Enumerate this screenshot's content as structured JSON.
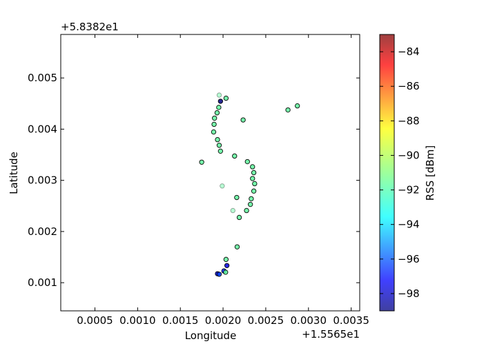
{
  "chart_data": {
    "type": "scatter",
    "title": "",
    "xlabel": "Longitude",
    "ylabel": "Latitude",
    "x_offset_label": "+1.5565e1",
    "y_offset_label": "+5.8382e1",
    "xlim": [
      0.0001,
      0.0036
    ],
    "ylim": [
      0.00045,
      0.00585
    ],
    "x_ticks": [
      0.0005,
      0.001,
      0.0015,
      0.002,
      0.0025,
      0.003,
      0.0035
    ],
    "x_tick_labels": [
      "0.0005",
      "0.0010",
      "0.0015",
      "0.0020",
      "0.0025",
      "0.0030",
      "0.0035"
    ],
    "y_ticks": [
      0.001,
      0.002,
      0.003,
      0.004,
      0.005
    ],
    "y_tick_labels": [
      "0.001",
      "0.002",
      "0.003",
      "0.004",
      "0.005"
    ],
    "colorbar": {
      "label": "RSS [dBm]",
      "range": [
        -99,
        -83
      ],
      "ticks": [
        -84,
        -86,
        -88,
        -90,
        -92,
        -94,
        -96,
        -98
      ],
      "tick_labels": [
        "−84",
        "−86",
        "−88",
        "−90",
        "−92",
        "−94",
        "−96",
        "−98"
      ],
      "colormap": "jet"
    },
    "grid": false,
    "points": [
      {
        "x": 0.001955,
        "y": 0.004665,
        "rss": -91.5,
        "faint": true
      },
      {
        "x": 0.002035,
        "y": 0.004605,
        "rss": -91.5,
        "faint": false
      },
      {
        "x": 0.00197,
        "y": 0.004545,
        "rss": -99.0,
        "faint": false
      },
      {
        "x": 0.00195,
        "y": 0.004425,
        "rss": -91.5,
        "faint": false
      },
      {
        "x": 0.00193,
        "y": 0.00432,
        "rss": -91.5,
        "faint": false
      },
      {
        "x": 0.0019,
        "y": 0.004215,
        "rss": -91.5,
        "faint": false
      },
      {
        "x": 0.001895,
        "y": 0.004095,
        "rss": -91.5,
        "faint": false
      },
      {
        "x": 0.00189,
        "y": 0.003945,
        "rss": -91.5,
        "faint": false
      },
      {
        "x": 0.001935,
        "y": 0.003795,
        "rss": -91.5,
        "faint": false
      },
      {
        "x": 0.001955,
        "y": 0.003685,
        "rss": -91.5,
        "faint": false
      },
      {
        "x": 0.00197,
        "y": 0.00357,
        "rss": -91.5,
        "faint": false
      },
      {
        "x": 0.002135,
        "y": 0.003475,
        "rss": -91.5,
        "faint": false
      },
      {
        "x": 0.002285,
        "y": 0.003365,
        "rss": -91.5,
        "faint": false
      },
      {
        "x": 0.002345,
        "y": 0.003265,
        "rss": -91.5,
        "faint": false
      },
      {
        "x": 0.00236,
        "y": 0.00315,
        "rss": -91.5,
        "faint": false
      },
      {
        "x": 0.002345,
        "y": 0.003035,
        "rss": -91.5,
        "faint": false
      },
      {
        "x": 0.00237,
        "y": 0.002935,
        "rss": -91.5,
        "faint": false
      },
      {
        "x": 0.00236,
        "y": 0.00279,
        "rss": -91.5,
        "faint": false
      },
      {
        "x": 0.00216,
        "y": 0.002665,
        "rss": -91.5,
        "faint": false
      },
      {
        "x": 0.00233,
        "y": 0.00264,
        "rss": -91.5,
        "faint": false
      },
      {
        "x": 0.00232,
        "y": 0.00253,
        "rss": -91.5,
        "faint": false
      },
      {
        "x": 0.002275,
        "y": 0.00241,
        "rss": -91.5,
        "faint": false
      },
      {
        "x": 0.002115,
        "y": 0.00241,
        "rss": -91.5,
        "faint": true
      },
      {
        "x": 0.00219,
        "y": 0.002275,
        "rss": -91.5,
        "faint": false
      },
      {
        "x": 0.00199,
        "y": 0.00289,
        "rss": -91.5,
        "faint": true
      },
      {
        "x": 0.00175,
        "y": 0.003355,
        "rss": -91.5,
        "faint": false
      },
      {
        "x": 0.002235,
        "y": 0.00418,
        "rss": -91.5,
        "faint": false
      },
      {
        "x": 0.00276,
        "y": 0.004375,
        "rss": -91.5,
        "faint": false
      },
      {
        "x": 0.00287,
        "y": 0.004455,
        "rss": -91.5,
        "faint": false
      },
      {
        "x": 0.002165,
        "y": 0.0017,
        "rss": -91.5,
        "faint": false
      },
      {
        "x": 0.002035,
        "y": 0.001455,
        "rss": -91.5,
        "faint": false
      },
      {
        "x": 0.002045,
        "y": 0.001335,
        "rss": -97.5,
        "faint": false
      },
      {
        "x": 0.00201,
        "y": 0.00123,
        "rss": -96.5,
        "faint": false
      },
      {
        "x": 0.00203,
        "y": 0.001205,
        "rss": -91.5,
        "faint": false
      },
      {
        "x": 0.001935,
        "y": 0.001175,
        "rss": -97.5,
        "faint": false
      },
      {
        "x": 0.001955,
        "y": 0.001165,
        "rss": -96.0,
        "faint": false
      }
    ]
  }
}
